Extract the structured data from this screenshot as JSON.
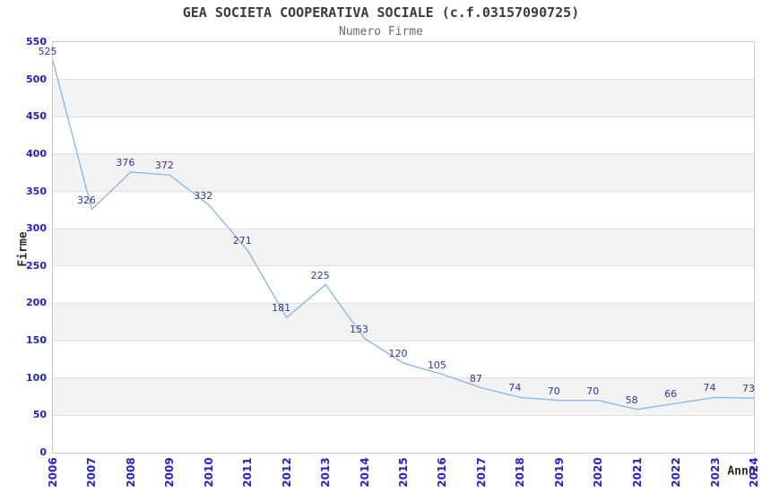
{
  "header": {
    "title": "GEA SOCIETA COOPERATIVA SOCIALE (c.f.03157090725)",
    "subtitle": "Numero Firme"
  },
  "chart_data": {
    "type": "line",
    "title": "GEA SOCIETA COOPERATIVA SOCIALE (c.f.03157090725)",
    "subtitle": "Numero Firme",
    "xlabel": "Anno",
    "ylabel": "Firme",
    "x": [
      "2006",
      "2007",
      "2008",
      "2009",
      "2010",
      "2011",
      "2012",
      "2013",
      "2014",
      "2015",
      "2016",
      "2017",
      "2018",
      "2019",
      "2020",
      "2021",
      "2022",
      "2023",
      "2024"
    ],
    "values": [
      525,
      326,
      376,
      372,
      332,
      271,
      181,
      225,
      153,
      120,
      105,
      87,
      74,
      70,
      70,
      58,
      66,
      74,
      73
    ],
    "ylim": [
      0,
      550
    ],
    "y_ticks": [
      0,
      50,
      100,
      150,
      200,
      250,
      300,
      350,
      400,
      450,
      500,
      550
    ],
    "grid": true,
    "background_bands": "alternating horizontal gray bands between gridlines",
    "legend": "none",
    "markers": "none",
    "data_labels_shown": true
  },
  "colors": {
    "line": "#85b5e7",
    "data_label": "#333399",
    "tick_label": "#2222cc",
    "title": "#3c3c3c",
    "subtitle": "#6e6e6e",
    "axis_title": "#2b2b2b",
    "band_gray": "#f2f2f2",
    "gridline": "#e0e0e0",
    "plot_border": "#c9c9c9",
    "background": "#ffffff"
  }
}
